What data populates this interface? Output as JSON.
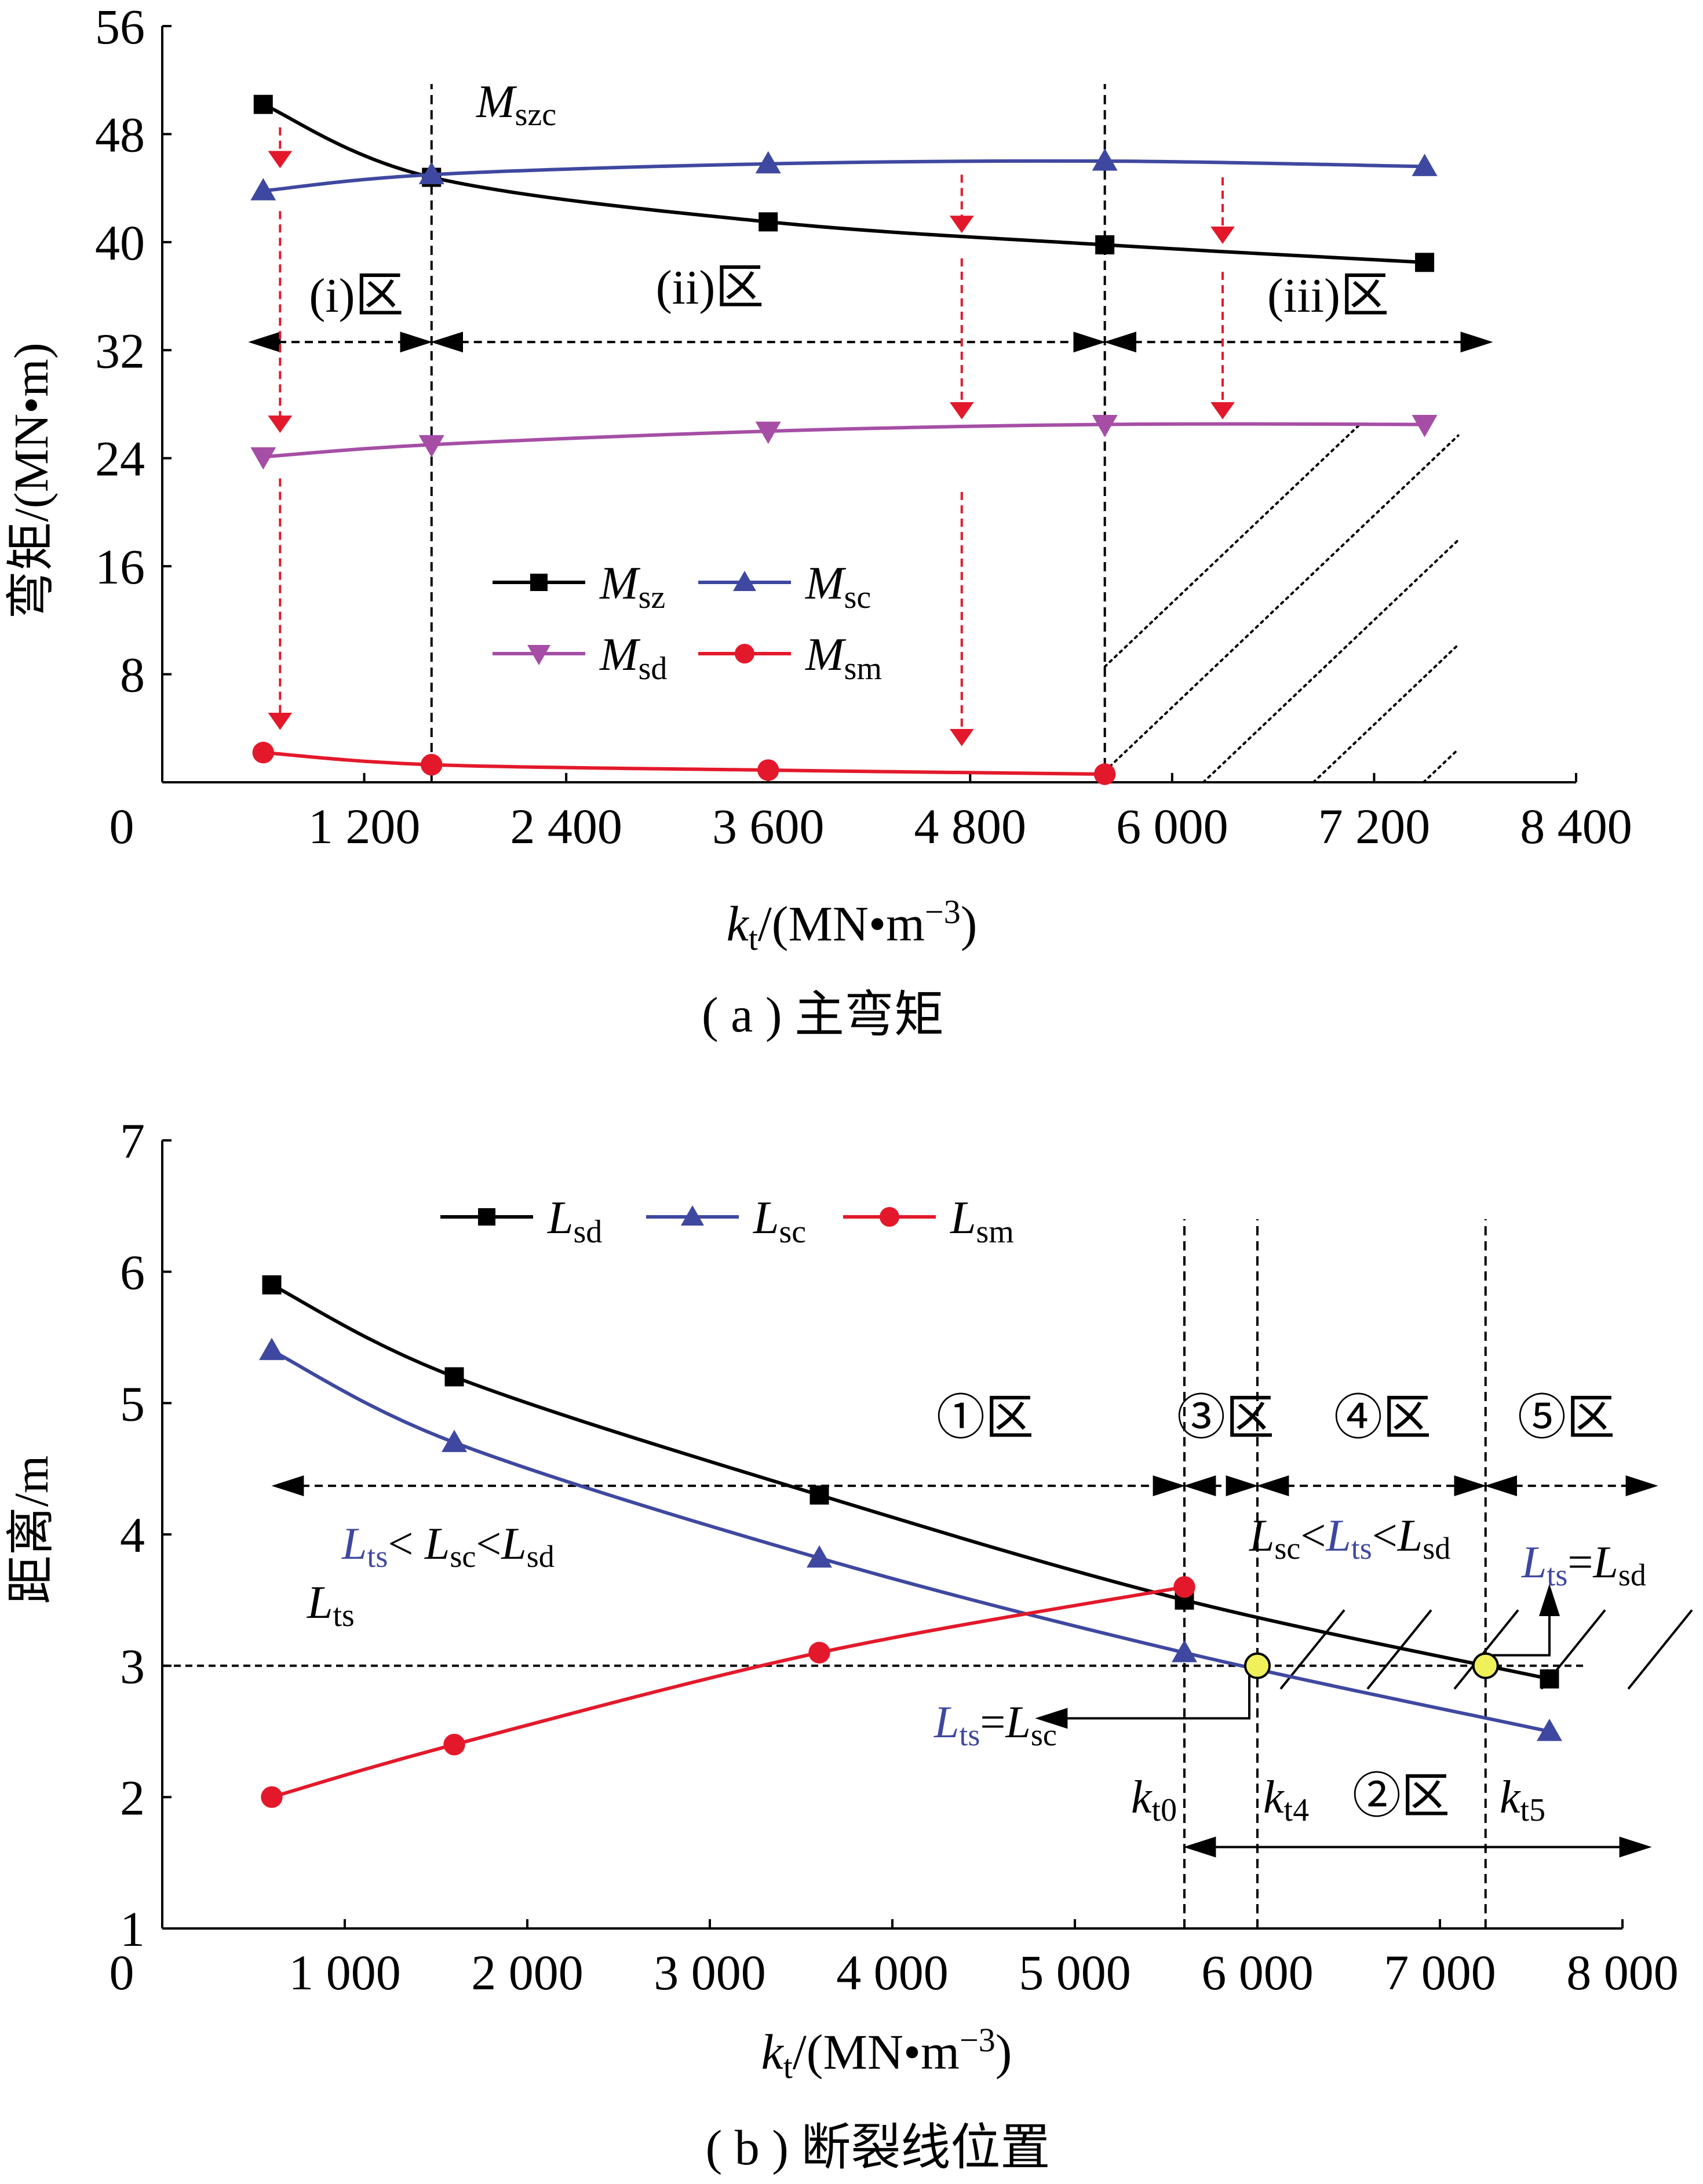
{
  "chart_data": [
    {
      "type": "line",
      "caption": "( a ) 主弯矩",
      "ylabel": "弯矩/(MN•m)",
      "xlabel_main": "k",
      "xlabel_sub": "t",
      "xlabel_rest": "/(MN•m",
      "xlabel_sup": "−3",
      "xlabel_close": ")",
      "xlim": [
        0,
        8400
      ],
      "ylim": [
        0,
        56
      ],
      "xticks": [
        0,
        1200,
        2400,
        3600,
        4800,
        6000,
        7200,
        8400
      ],
      "xtick_labels": [
        "0",
        "1 200",
        "2 400",
        "3 600",
        "4 800",
        "6 000",
        "7 200",
        "8 400"
      ],
      "yticks": [
        8,
        16,
        24,
        32,
        40,
        48,
        56
      ],
      "ytick_labels": [
        "8",
        "16",
        "24",
        "32",
        "40",
        "48",
        "56"
      ],
      "series": [
        {
          "name": "M",
          "sub": "sz",
          "color": "#000000",
          "marker": "square",
          "x": [
            600,
            1600,
            3600,
            5600,
            7500
          ],
          "y": [
            50.2,
            44.8,
            41.5,
            39.8,
            38.5
          ]
        },
        {
          "name": "M",
          "sub": "sc",
          "color": "#3f48a0",
          "marker": "triangle-up",
          "x": [
            600,
            1600,
            3600,
            5600,
            7500
          ],
          "y": [
            43.8,
            45.0,
            45.8,
            46.0,
            45.6
          ]
        },
        {
          "name": "M",
          "sub": "sd",
          "color": "#a64ea6",
          "marker": "triangle-down",
          "x": [
            600,
            1600,
            3600,
            5600,
            7500
          ],
          "y": [
            24.1,
            25.0,
            26.0,
            26.5,
            26.5
          ]
        },
        {
          "name": "M",
          "sub": "sm",
          "color": "#e3192b",
          "marker": "circle",
          "x": [
            600,
            1600,
            3600,
            5600
          ],
          "y": [
            2.2,
            1.3,
            0.9,
            0.6
          ]
        }
      ],
      "vlines": [
        1600,
        5600
      ],
      "vline_label": {
        "main": "M",
        "sub": "szc"
      },
      "zone_labels": [
        "(i)区",
        "(ii)区",
        "(iii)区"
      ],
      "zone_arrow_y": 32.6,
      "red_arrows": [
        {
          "x": 700,
          "y1": 48.5,
          "y2": 45.6
        },
        {
          "x": 700,
          "y1": 42.3,
          "y2": 26.0
        },
        {
          "x": 700,
          "y1": 22.5,
          "y2": 4.0
        },
        {
          "x": 4750,
          "y1": 45.0,
          "y2": 40.8
        },
        {
          "x": 4750,
          "y1": 38.8,
          "y2": 27.0
        },
        {
          "x": 4750,
          "y1": 21.5,
          "y2": 2.8
        },
        {
          "x": 6300,
          "y1": 44.8,
          "y2": 40.0
        },
        {
          "x": 6300,
          "y1": 37.8,
          "y2": 27.0
        }
      ]
    },
    {
      "type": "line",
      "caption": "( b ) 断裂线位置",
      "ylabel": "距离/m",
      "xlabel_main": "k",
      "xlabel_sub": "t",
      "xlabel_rest": "/(MN•m",
      "xlabel_sup": "−3",
      "xlabel_close": ")",
      "xlim": [
        0,
        8000
      ],
      "ylim": [
        1,
        7
      ],
      "xticks": [
        0,
        1000,
        2000,
        3000,
        4000,
        5000,
        6000,
        7000,
        8000
      ],
      "xtick_labels": [
        "0",
        "1 000",
        "2 000",
        "3 000",
        "4 000",
        "5 000",
        "6 000",
        "7 000",
        "8 000"
      ],
      "yticks": [
        1,
        2,
        3,
        4,
        5,
        6,
        7
      ],
      "ytick_labels": [
        "1",
        "2",
        "3",
        "4",
        "5",
        "6",
        "7"
      ],
      "series": [
        {
          "name": "L",
          "sub": "sd",
          "color": "#000000",
          "marker": "square",
          "x": [
            600,
            1600,
            3600,
            5600,
            7600
          ],
          "y": [
            5.9,
            5.2,
            4.3,
            3.5,
            2.9
          ]
        },
        {
          "name": "L",
          "sub": "sc",
          "color": "#3f48a0",
          "marker": "triangle-up",
          "x": [
            600,
            1600,
            3600,
            5600,
            7600
          ],
          "y": [
            5.4,
            4.7,
            3.82,
            3.1,
            2.5
          ]
        },
        {
          "name": "L",
          "sub": "sm",
          "color": "#e3192b",
          "marker": "circle",
          "x": [
            600,
            1600,
            3600,
            5600
          ],
          "y": [
            2.0,
            2.4,
            3.1,
            3.6
          ]
        }
      ],
      "hline": {
        "y": 3.0,
        "label_main": "L",
        "label_sub": "ts"
      },
      "vlines": [
        5600,
        6000,
        7250
      ],
      "points": [
        {
          "x": 6000,
          "y": 3.0
        },
        {
          "x": 7250,
          "y": 3.0
        }
      ],
      "zone_labels": [
        "①区",
        "③区",
        "④区",
        "⑤区",
        "②区"
      ],
      "ineq1": {
        "a": "L",
        "a_sub": "ts",
        "op1": "< ",
        "b": "L",
        "b_sub": "sc",
        "op2": "<",
        "c": "L",
        "c_sub": "sd"
      },
      "ineq2": {
        "a": "L",
        "a_sub": "sc",
        "op1": "<",
        "b": "L",
        "b_sub": "ts",
        "op2": "<",
        "c": "L",
        "c_sub": "sd"
      },
      "eq1": {
        "a": "L",
        "a_sub": "ts",
        "op": "=",
        "b": "L",
        "b_sub": "sc"
      },
      "eq2": {
        "a": "L",
        "a_sub": "ts",
        "op": "=",
        "b": "L",
        "b_sub": "sd"
      },
      "k_labels": [
        {
          "main": "k",
          "sub": "t0"
        },
        {
          "main": "k",
          "sub": "t4"
        },
        {
          "main": "k",
          "sub": "t5"
        }
      ]
    }
  ]
}
